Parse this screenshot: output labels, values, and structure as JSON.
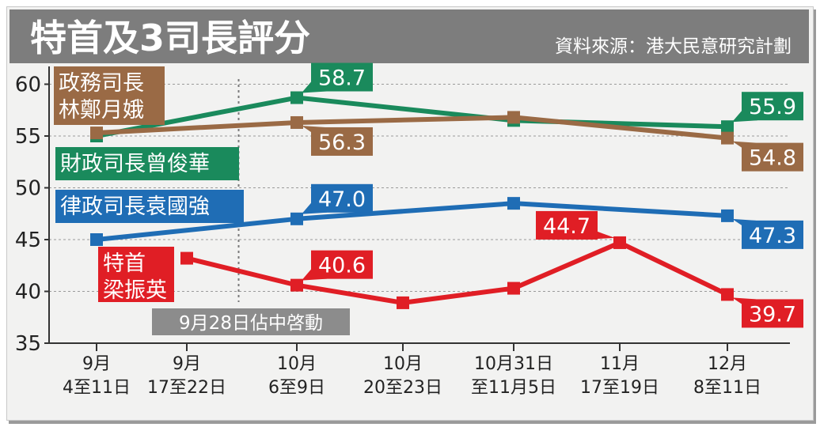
{
  "header": {
    "title": "特首及3司長評分",
    "source": "資料來源：港大民意研究計劃"
  },
  "colors": {
    "header_bg": "#7d7d7d",
    "tsang": "#1a8a5c",
    "lam": "#9a6a45",
    "yuen": "#1f6db5",
    "leung": "#e01e25",
    "event": "#8c8c8c"
  },
  "chart_data": {
    "type": "line",
    "title": "特首及3司長評分",
    "xlabel": "",
    "ylabel": "",
    "ylim": [
      35,
      61
    ],
    "yticks": [
      35,
      40,
      45,
      50,
      55,
      60
    ],
    "categories": [
      [
        "9月",
        "4至11日"
      ],
      [
        "9月",
        "17至22日"
      ],
      [
        "10月",
        "6至9日"
      ],
      [
        "10月",
        "20至23日"
      ],
      [
        "10月31日",
        "至11月5日"
      ],
      [
        "11月",
        "17至19日"
      ],
      [
        "12月",
        "8至11日"
      ]
    ],
    "event": {
      "label": "9月28日佔中啓動",
      "between": [
        1,
        2
      ]
    },
    "series": [
      {
        "name": "財政司長曾俊華",
        "label_lines": [
          "財政司長曾俊華"
        ],
        "color": "#1a8a5c",
        "values": [
          55.0,
          null,
          58.7,
          null,
          56.5,
          null,
          55.9
        ],
        "callouts": [
          {
            "index": 2,
            "text": "58.7",
            "side": "right"
          },
          {
            "index": 6,
            "text": "55.9",
            "side": "right"
          }
        ]
      },
      {
        "name": "政務司長林鄭月娥",
        "label_lines": [
          "政務司長",
          "林鄭月娥"
        ],
        "color": "#9a6a45",
        "values": [
          55.3,
          null,
          56.3,
          null,
          56.8,
          null,
          54.8
        ],
        "callouts": [
          {
            "index": 2,
            "text": "56.3",
            "side": "right-low"
          },
          {
            "index": 6,
            "text": "54.8",
            "side": "right-low"
          }
        ]
      },
      {
        "name": "律政司長袁國強",
        "label_lines": [
          "律政司長袁國強"
        ],
        "color": "#1f6db5",
        "values": [
          45.0,
          null,
          47.0,
          null,
          48.5,
          null,
          47.3
        ],
        "callouts": [
          {
            "index": 2,
            "text": "47.0",
            "side": "right"
          },
          {
            "index": 6,
            "text": "47.3",
            "side": "right-low"
          }
        ]
      },
      {
        "name": "特首梁振英",
        "label_lines": [
          "特首",
          "梁振英"
        ],
        "color": "#e01e25",
        "values": [
          null,
          43.2,
          40.6,
          38.9,
          40.3,
          44.7,
          39.7
        ],
        "callouts": [
          {
            "index": 2,
            "text": "40.6",
            "side": "right"
          },
          {
            "index": 5,
            "text": "44.7",
            "side": "left"
          },
          {
            "index": 6,
            "text": "39.7",
            "side": "right-low"
          }
        ]
      }
    ]
  }
}
